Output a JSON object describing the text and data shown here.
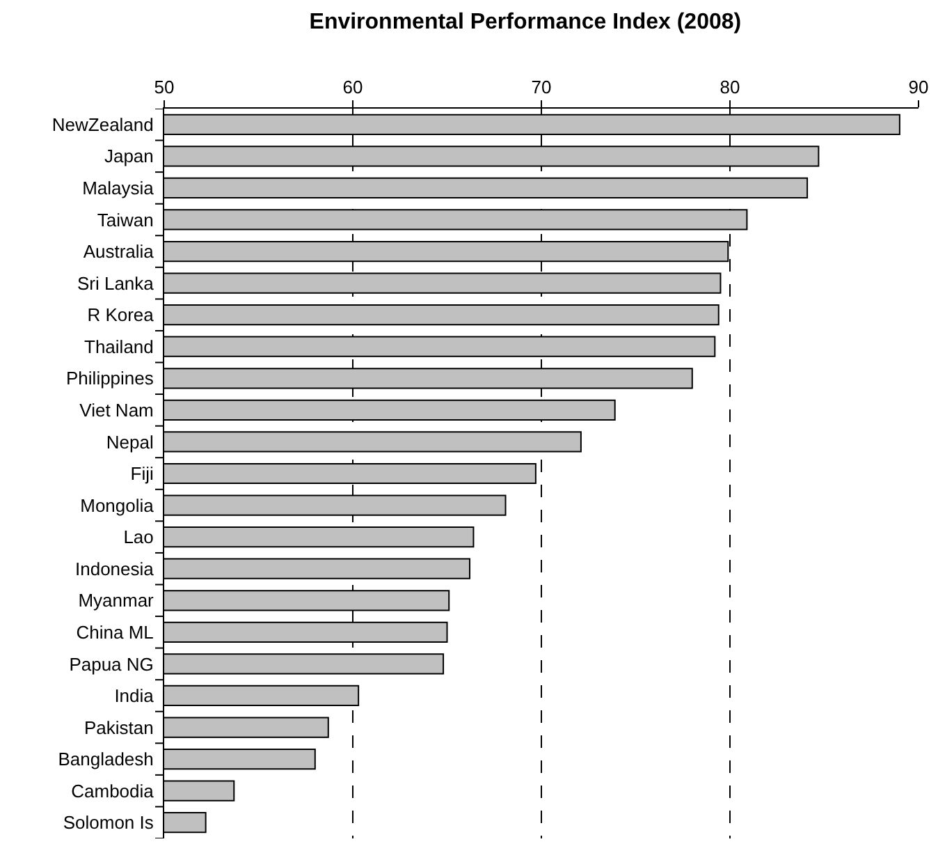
{
  "chart_data": {
    "type": "bar",
    "orientation": "horizontal",
    "title": "Environmental Performance Index (2008)",
    "categories": [
      "NewZealand",
      "Japan",
      "Malaysia",
      "Taiwan",
      "Australia",
      "Sri Lanka",
      "R Korea",
      "Thailand",
      "Philippines",
      "Viet Nam",
      "Nepal",
      "Fiji",
      "Mongolia",
      "Lao",
      "Indonesia",
      "Myanmar",
      "China ML",
      "Papua NG",
      "India",
      "Pakistan",
      "Bangladesh",
      "Cambodia",
      "Solomon Is"
    ],
    "values": [
      89.0,
      84.7,
      84.1,
      80.9,
      79.9,
      79.5,
      79.4,
      79.2,
      78.0,
      73.9,
      72.1,
      69.7,
      68.1,
      66.4,
      66.2,
      65.1,
      65.0,
      64.8,
      60.3,
      58.7,
      58.0,
      53.7,
      52.2
    ],
    "color": "#c0c0c0",
    "xlim": [
      50,
      90
    ],
    "xticks": [
      50,
      60,
      70,
      80,
      90
    ],
    "grid": "x",
    "legend": false
  }
}
